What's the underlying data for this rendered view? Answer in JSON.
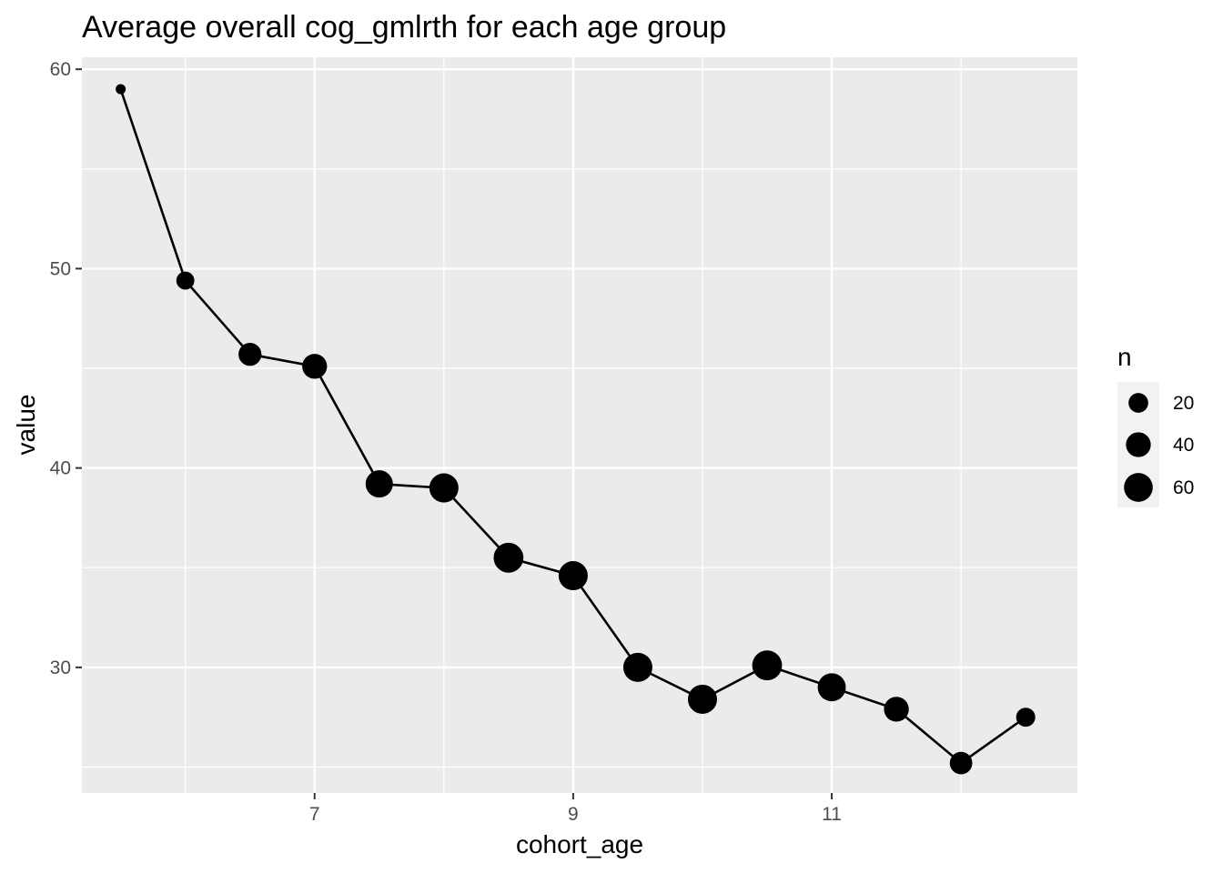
{
  "chart_data": {
    "type": "scatter",
    "title": "Average overall cog_gmlrth for each age group",
    "xlabel": "cohort_age",
    "ylabel": "value",
    "xlim": [
      5.2,
      12.9
    ],
    "ylim": [
      23.7,
      60.6
    ],
    "x_ticks": [
      7,
      9,
      11
    ],
    "x_minor_ticks": [
      6,
      8,
      10,
      12
    ],
    "y_ticks": [
      30,
      40,
      50,
      60
    ],
    "y_minor_ticks": [
      25,
      35,
      45,
      55
    ],
    "grid": true,
    "panel_background": "#ebebeb",
    "grid_color": "#ffffff",
    "point_color": "#000000",
    "line_color": "#000000",
    "size_legend": {
      "title": "n",
      "position": "right",
      "entries": [
        {
          "label": "20",
          "n": 20
        },
        {
          "label": "40",
          "n": 40
        },
        {
          "label": "60",
          "n": 60
        }
      ]
    },
    "series": [
      {
        "x": [
          5.5,
          6.0,
          6.5,
          7.0,
          7.5,
          8.0,
          8.5,
          9.0,
          9.5,
          10.0,
          10.5,
          11.0,
          11.5,
          12.0,
          12.5
        ],
        "y": [
          59.0,
          49.4,
          45.7,
          45.1,
          39.2,
          39.0,
          35.5,
          34.6,
          30.0,
          28.4,
          30.1,
          29.0,
          27.9,
          25.2,
          27.5
        ],
        "n": [
          1,
          15,
          32,
          40,
          52,
          62,
          66,
          62,
          62,
          62,
          66,
          56,
          40,
          30,
          18
        ]
      }
    ]
  }
}
